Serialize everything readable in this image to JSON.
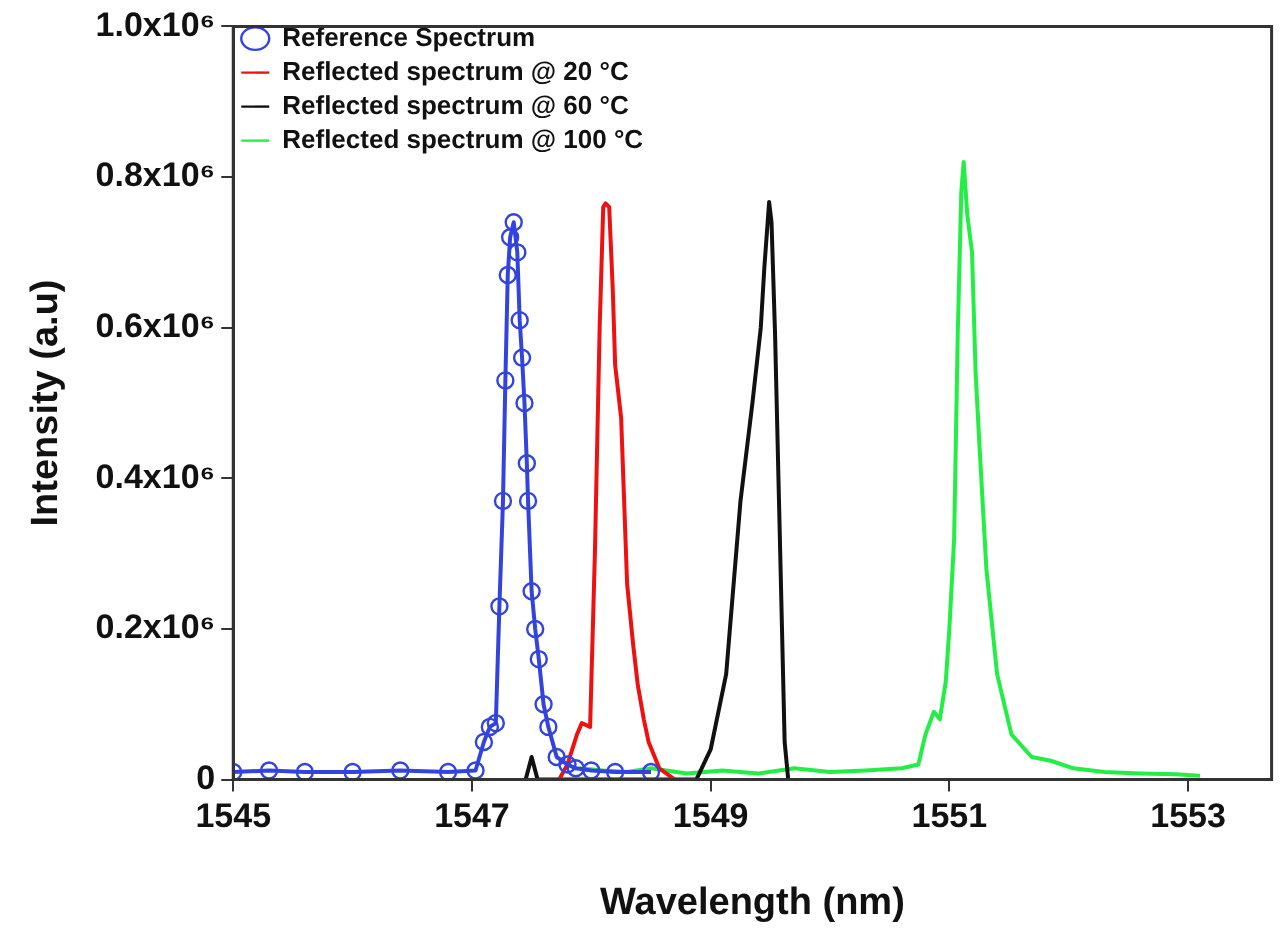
{
  "chart_data": {
    "type": "line",
    "xlabel": "Wavelength (nm)",
    "ylabel": "Intensity (a.u)",
    "xlim": [
      1545,
      1553.7
    ],
    "xticks": [
      1545,
      1547,
      1549,
      1551,
      1553
    ],
    "ylim": [
      0,
      1000000
    ],
    "yticks": [
      {
        "value": 0,
        "label": "0"
      },
      {
        "value": 200000,
        "label": "0.2x10⁶"
      },
      {
        "value": 400000,
        "label": "0.4x10⁶"
      },
      {
        "value": 600000,
        "label": "0.6x10⁶"
      },
      {
        "value": 800000,
        "label": "0.8x10⁶"
      },
      {
        "value": 1000000,
        "label": "1.0x10⁶"
      }
    ],
    "grid": false,
    "legend": "top left",
    "series": [
      {
        "name": "Reference Spectrum",
        "color": "#3344dd",
        "marker": "circle",
        "x": [
          1545,
          1545.3,
          1545.6,
          1546,
          1546.4,
          1546.8,
          1547.03,
          1547.1,
          1547.15,
          1547.2,
          1547.23,
          1547.26,
          1547.28,
          1547.3,
          1547.32,
          1547.35,
          1547.38,
          1547.4,
          1547.42,
          1547.44,
          1547.46,
          1547.47,
          1547.5,
          1547.53,
          1547.56,
          1547.6,
          1547.64,
          1547.71,
          1547.8,
          1547.87,
          1548,
          1548.2,
          1548.5
        ],
        "values": [
          10000,
          12000,
          10000,
          10000,
          12000,
          10000,
          12000,
          50000,
          70000,
          75000,
          230000,
          370000,
          530000,
          670000,
          720000,
          740000,
          700000,
          610000,
          560000,
          500000,
          420000,
          370000,
          250000,
          200000,
          160000,
          100000,
          70000,
          30000,
          20000,
          15000,
          12000,
          10000,
          10000
        ]
      },
      {
        "name": "Reflected spectrum @ 20 °C",
        "color": "#ee1111",
        "marker": "none",
        "x": [
          1547.73,
          1547.8,
          1547.88,
          1547.92,
          1547.99,
          1548.03,
          1548.07,
          1548.1,
          1548.12,
          1548.15,
          1548.18,
          1548.2,
          1548.25,
          1548.3,
          1548.35,
          1548.39,
          1548.44,
          1548.48,
          1548.57,
          1548.7
        ],
        "values": [
          0,
          20000,
          60000,
          75000,
          70000,
          300000,
          600000,
          760000,
          765000,
          760000,
          650000,
          550000,
          480000,
          260000,
          180000,
          125000,
          80000,
          50000,
          15000,
          0
        ]
      },
      {
        "name": "Reflected spectrum @ 60 °C",
        "color": "#111111",
        "marker": "none",
        "x": [
          1547.45,
          1547.5,
          1547.55,
          1548.88,
          1549.0,
          1549.13,
          1549.25,
          1549.35,
          1549.42,
          1549.45,
          1549.49,
          1549.51,
          1549.54,
          1549.58,
          1549.62,
          1549.65
        ],
        "values": [
          0,
          30000,
          0,
          0,
          40000,
          140000,
          370000,
          500000,
          600000,
          680000,
          767000,
          740000,
          590000,
          320000,
          50000,
          0
        ]
      },
      {
        "name": "Reflected spectrum @ 100 °C",
        "color": "#22ee44",
        "marker": "none",
        "x": [
          1547.9,
          1548.1,
          1548.3,
          1548.5,
          1548.8,
          1549.1,
          1549.4,
          1549.7,
          1550.0,
          1550.3,
          1550.6,
          1550.74,
          1550.8,
          1550.87,
          1550.92,
          1550.97,
          1551.0,
          1551.04,
          1551.07,
          1551.1,
          1551.12,
          1551.15,
          1551.19,
          1551.22,
          1551.25,
          1551.31,
          1551.4,
          1551.52,
          1551.69,
          1551.85,
          1552.04,
          1552.3,
          1552.6,
          1552.9,
          1553.1
        ],
        "values": [
          15000,
          12000,
          10000,
          15000,
          8000,
          12000,
          8000,
          15000,
          10000,
          12000,
          15000,
          20000,
          60000,
          90000,
          80000,
          130000,
          200000,
          320000,
          590000,
          780000,
          820000,
          750000,
          700000,
          540000,
          450000,
          280000,
          140000,
          60000,
          30000,
          25000,
          15000,
          10000,
          8000,
          7000,
          5000
        ]
      }
    ]
  }
}
